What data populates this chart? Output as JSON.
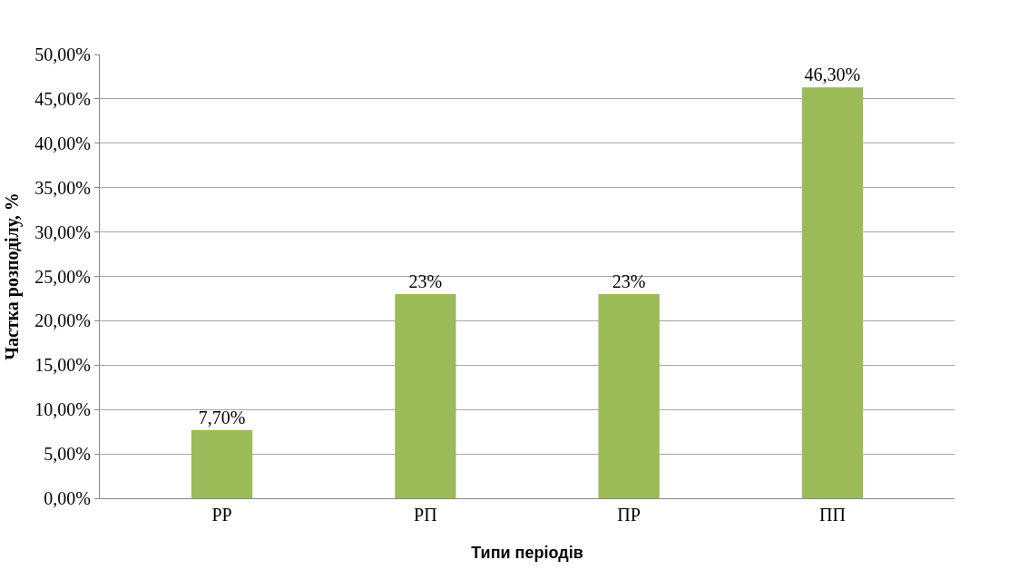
{
  "chart_data": {
    "type": "bar",
    "xlabel": "Типи періодів",
    "ylabel": "Частка розподілу, %",
    "categories": [
      "РР",
      "РП",
      "ПР",
      "ПП"
    ],
    "values": [
      7.7,
      23,
      23,
      46.3
    ],
    "value_labels": [
      "7,70%",
      "23%",
      "23%",
      "46,30%"
    ],
    "color": "#9bbb59",
    "ylim": [
      0,
      50
    ],
    "yticks": [
      {
        "value": 0,
        "label": "0,00%"
      },
      {
        "value": 5,
        "label": "5,00%"
      },
      {
        "value": 10,
        "label": "10,00%"
      },
      {
        "value": 15,
        "label": "15,00%"
      },
      {
        "value": 20,
        "label": "20,00%"
      },
      {
        "value": 25,
        "label": "25,00%"
      },
      {
        "value": 30,
        "label": "30,00%"
      },
      {
        "value": 35,
        "label": "35,00%"
      },
      {
        "value": 40,
        "label": "40,00%"
      },
      {
        "value": 45,
        "label": "45,00%"
      },
      {
        "value": 50,
        "label": "50,00%"
      }
    ],
    "grid": true
  }
}
